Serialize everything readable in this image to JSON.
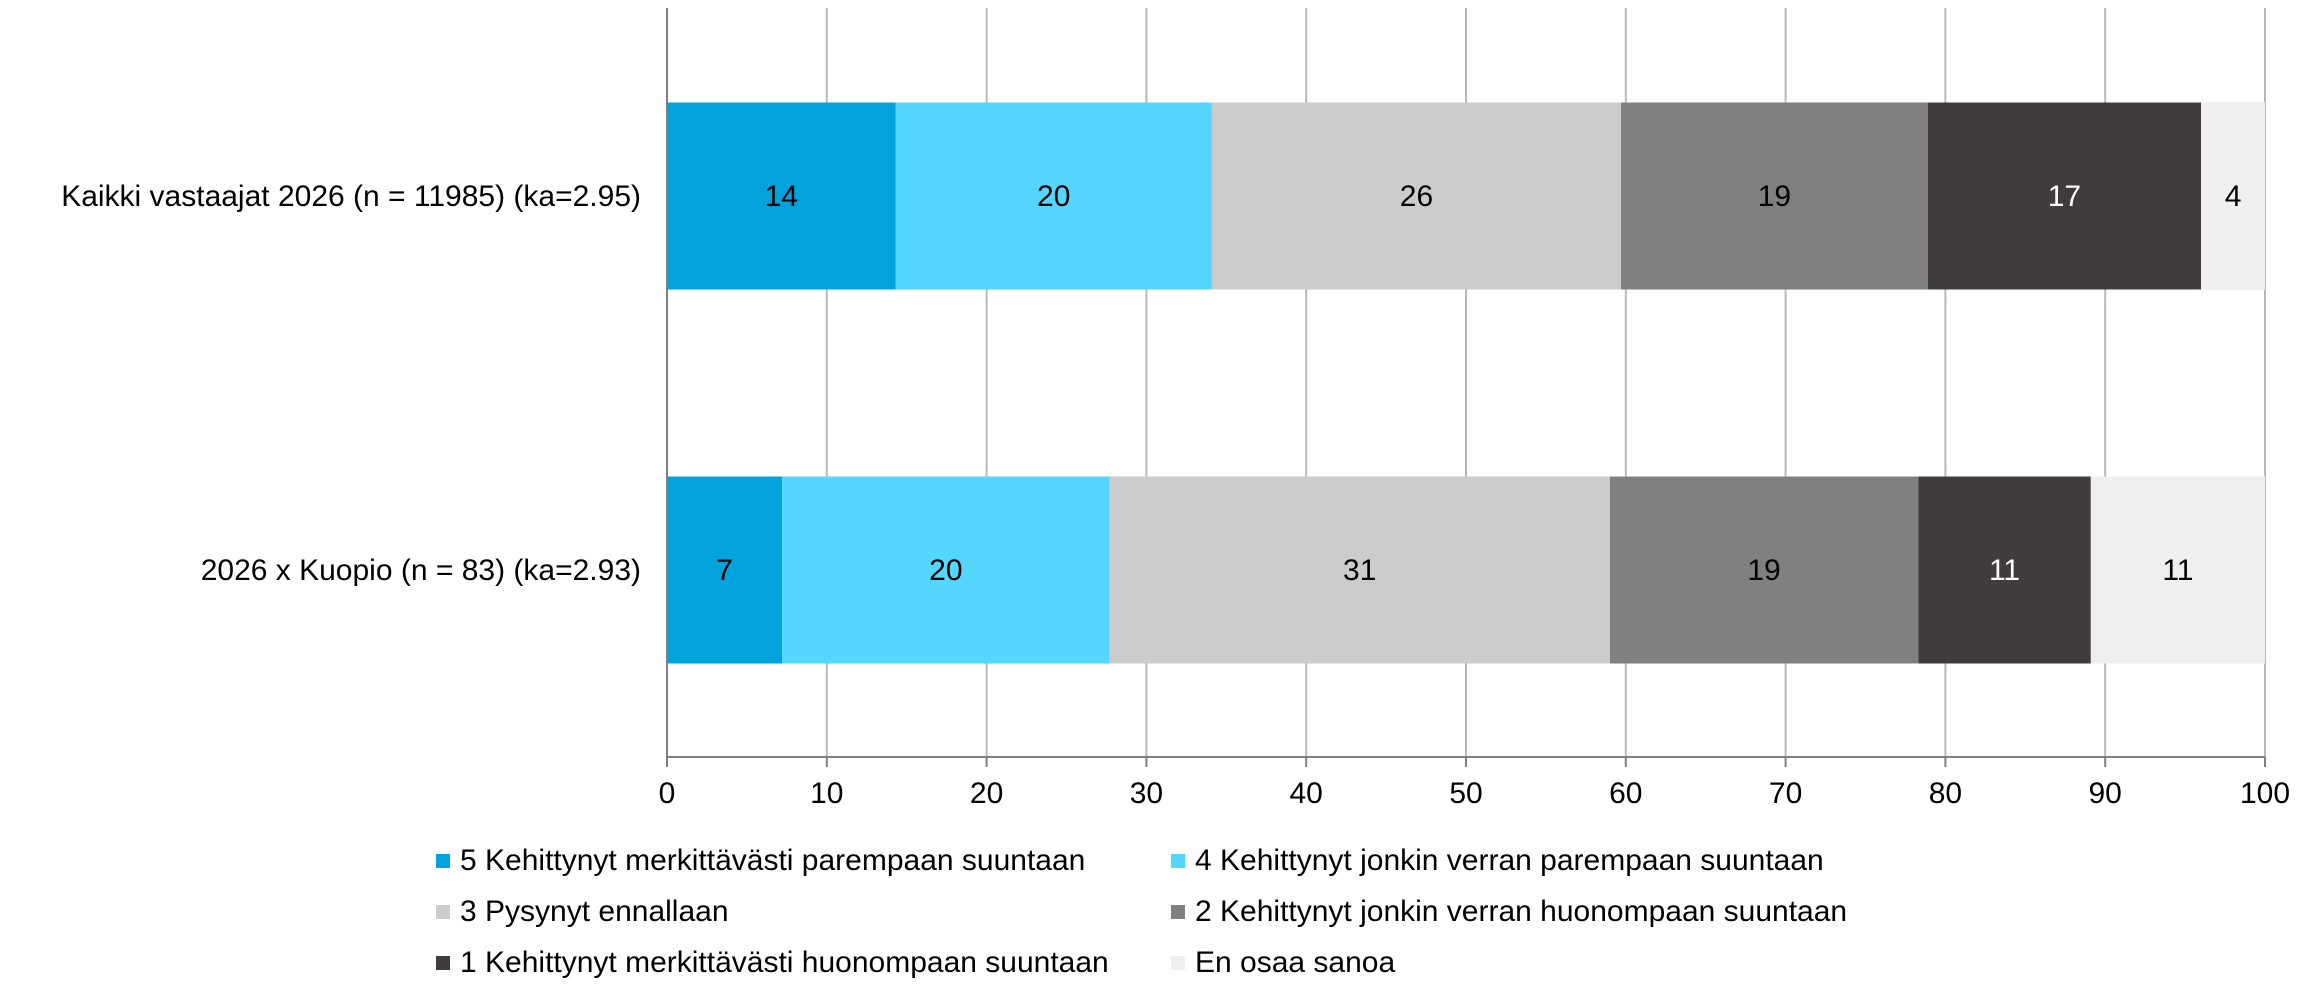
{
  "chart_data": {
    "type": "bar",
    "orientation": "horizontal",
    "stacked": true,
    "categories": [
      "Kaikki vastaajat 2026 (n = 11985) (ka=2.95)",
      "2026 x Kuopio (n = 83) (ka=2.93)"
    ],
    "series": [
      {
        "name": "5 Kehittynyt merkittävästi parempaan suuntaan",
        "color": "#00a3dc",
        "values": [
          14.3,
          7.2
        ],
        "labels": [
          "14",
          "7"
        ]
      },
      {
        "name": "4 Kehittynyt jonkin verran parempaan suuntaan",
        "color": "#55d6ff",
        "values": [
          19.8,
          20.5
        ],
        "labels": [
          "20",
          "20"
        ]
      },
      {
        "name": "3 Pysynyt ennallaan",
        "color": "#cccccc",
        "values": [
          25.6,
          31.3
        ],
        "labels": [
          "26",
          "31"
        ]
      },
      {
        "name": "2 Kehittynyt jonkin verran huonompaan suuntaan",
        "color": "#808080",
        "values": [
          19.2,
          19.3
        ],
        "labels": [
          "19",
          "19"
        ]
      },
      {
        "name": "1 Kehittynyt merkittävästi huonompaan suuntaan",
        "color": "#403c3c",
        "values": [
          17.1,
          10.8
        ],
        "labels": [
          "17",
          "11"
        ]
      },
      {
        "name": "En osaa sanoa",
        "color": "#efefef",
        "values": [
          4.0,
          10.9
        ],
        "labels": [
          "4",
          "11"
        ]
      }
    ],
    "xlim": [
      0,
      100
    ],
    "xticks": [
      "0",
      "10",
      "20",
      "30",
      "40",
      "50",
      "60",
      "70",
      "80",
      "90",
      "100"
    ],
    "grid": "vertical",
    "legend_position": "bottom"
  }
}
